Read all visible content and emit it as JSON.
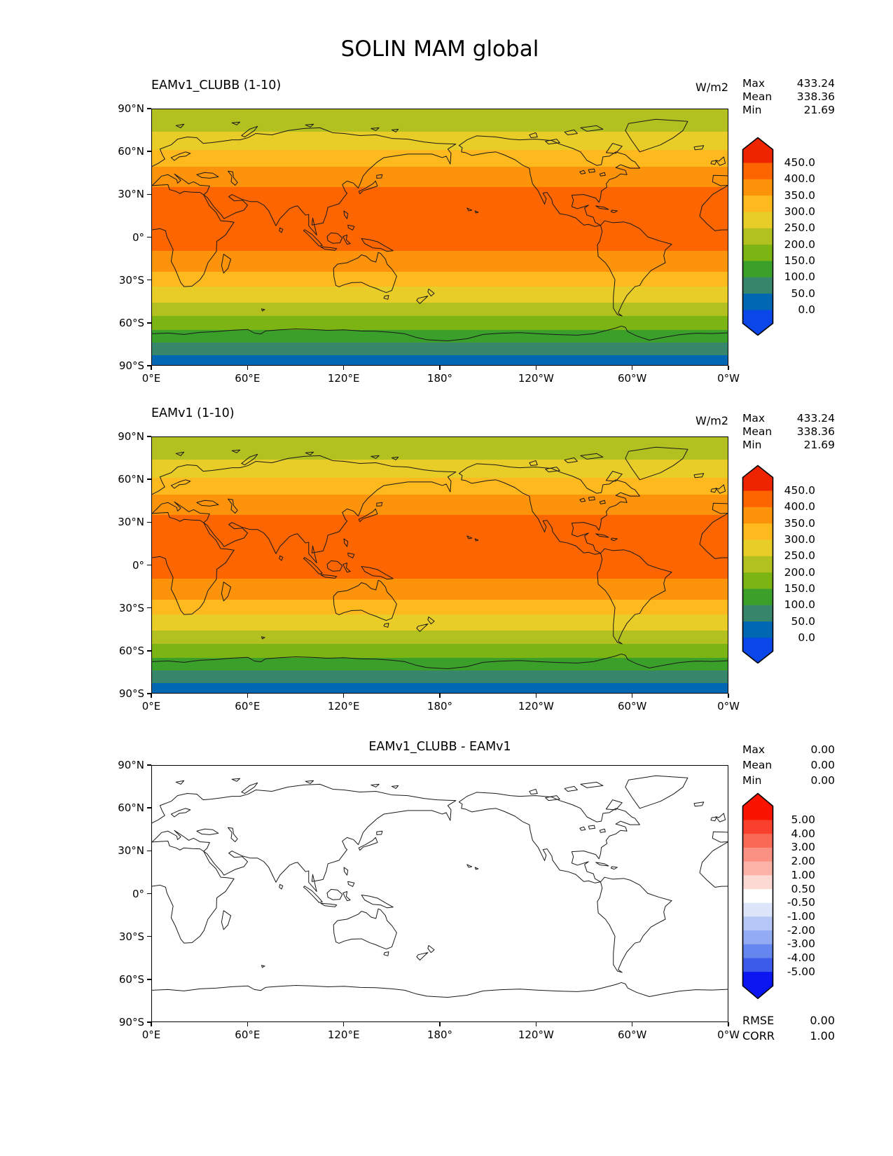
{
  "title": "SOLIN MAM global",
  "axes": {
    "x_ticks": [
      "0°E",
      "60°E",
      "120°E",
      "180°",
      "120°W",
      "60°W",
      "0°W"
    ],
    "y_ticks": [
      "90°N",
      "60°N",
      "30°N",
      "0°",
      "30°S",
      "60°S",
      "90°S"
    ]
  },
  "panels": [
    {
      "title": "EAMv1_CLUBB (1-10)",
      "units": "W/m2",
      "stats": [
        {
          "label": "Max",
          "value": "433.24"
        },
        {
          "label": "Mean",
          "value": "338.36"
        },
        {
          "label": "Min",
          "value": "21.69"
        }
      ],
      "map_bands": [
        {
          "color": "#b2c120",
          "height": 8.7
        },
        {
          "color": "#e8cc28",
          "height": 7.1
        },
        {
          "color": "#fdb91e",
          "height": 6.8
        },
        {
          "color": "#fc930a",
          "height": 7.9
        },
        {
          "color": "#fd6500",
          "height": 24.8
        },
        {
          "color": "#fc930a",
          "height": 8.3
        },
        {
          "color": "#fdb91e",
          "height": 5.7
        },
        {
          "color": "#e8cc28",
          "height": 6.2
        },
        {
          "color": "#b2c120",
          "height": 5.4
        },
        {
          "color": "#7cb414",
          "height": 5.4
        },
        {
          "color": "#3ba02a",
          "height": 5.0
        },
        {
          "color": "#37856b",
          "height": 4.9
        },
        {
          "color": "#0068b2",
          "height": 3.8
        }
      ],
      "colorbar": {
        "extend_top": "#ee2400",
        "extend_bottom": "#0a46e8",
        "segments": [
          "#fd6500",
          "#fc930a",
          "#fdb91e",
          "#e8cc28",
          "#b2c120",
          "#7cb414",
          "#3ba02a",
          "#37856b",
          "#0068b2"
        ],
        "labels": [
          "450.0",
          "400.0",
          "350.0",
          "300.0",
          "250.0",
          "200.0",
          "150.0",
          "100.0",
          "50.0",
          "0.0"
        ]
      }
    },
    {
      "title": "EAMv1 (1-10)",
      "units": "W/m2",
      "stats": [
        {
          "label": "Max",
          "value": "433.24"
        },
        {
          "label": "Mean",
          "value": "338.36"
        },
        {
          "label": "Min",
          "value": "21.69"
        }
      ],
      "map_bands": [
        {
          "color": "#b2c120",
          "height": 8.7
        },
        {
          "color": "#e8cc28",
          "height": 7.1
        },
        {
          "color": "#fdb91e",
          "height": 6.8
        },
        {
          "color": "#fc930a",
          "height": 7.9
        },
        {
          "color": "#fd6500",
          "height": 24.8
        },
        {
          "color": "#fc930a",
          "height": 8.3
        },
        {
          "color": "#fdb91e",
          "height": 5.7
        },
        {
          "color": "#e8cc28",
          "height": 6.2
        },
        {
          "color": "#b2c120",
          "height": 5.4
        },
        {
          "color": "#7cb414",
          "height": 5.4
        },
        {
          "color": "#3ba02a",
          "height": 5.0
        },
        {
          "color": "#37856b",
          "height": 4.9
        },
        {
          "color": "#0068b2",
          "height": 3.8
        }
      ],
      "colorbar": {
        "extend_top": "#ee2400",
        "extend_bottom": "#0a46e8",
        "segments": [
          "#fd6500",
          "#fc930a",
          "#fdb91e",
          "#e8cc28",
          "#b2c120",
          "#7cb414",
          "#3ba02a",
          "#37856b",
          "#0068b2"
        ],
        "labels": [
          "450.0",
          "400.0",
          "350.0",
          "300.0",
          "250.0",
          "200.0",
          "150.0",
          "100.0",
          "50.0",
          "0.0"
        ]
      }
    },
    {
      "title": "EAMv1_CLUBB - EAMv1",
      "units": "",
      "stats": [
        {
          "label": "Max",
          "value": "0.00"
        },
        {
          "label": "Mean",
          "value": "0.00"
        },
        {
          "label": "Min",
          "value": "0.00"
        }
      ],
      "map_bands": [],
      "colorbar": {
        "extend_top": "#fa1400",
        "extend_bottom": "#0b16f0",
        "segments": [
          "#f9402c",
          "#f96a56",
          "#fb9183",
          "#fcb2a6",
          "#fdd9d3",
          "#ffffff",
          "#dde5fa",
          "#b6c6f6",
          "#93abf3",
          "#6585ef",
          "#3d5beb"
        ],
        "labels": [
          "5.00",
          "4.00",
          "3.00",
          "2.00",
          "1.00",
          "0.50",
          "-0.50",
          "-1.00",
          "-2.00",
          "-3.00",
          "-4.00",
          "-5.00"
        ]
      }
    }
  ],
  "footer_stats": [
    {
      "label": "RMSE",
      "value": "0.00"
    },
    {
      "label": "CORR",
      "value": "1.00"
    }
  ],
  "chart_data": {
    "type": "heatmap",
    "title": "SOLIN MAM global",
    "variable": "SOLIN",
    "season": "MAM",
    "region": "global",
    "units": "W/m2",
    "projection": "equirectangular, longitudes 0°E to 0°W (centered on 180°)",
    "x_tick_labels": [
      "0°E",
      "60°E",
      "120°E",
      "180°",
      "120°W",
      "60°W",
      "0°W"
    ],
    "y_tick_labels": [
      "90°N",
      "60°N",
      "30°N",
      "0°",
      "30°S",
      "60°S",
      "90°S"
    ],
    "panels": [
      {
        "title": "EAMv1_CLUBB (1-10)",
        "stats": {
          "max": 433.24,
          "mean": 338.36,
          "min": 21.69
        },
        "colorbar_levels": [
          0,
          50,
          100,
          150,
          200,
          250,
          300,
          350,
          400,
          450
        ],
        "colorbar_extend": "both",
        "zonal_bands_W_per_m2": [
          {
            "lat_from": 90,
            "lat_to": 74.3,
            "value_range": "200-250"
          },
          {
            "lat_from": 74.3,
            "lat_to": 61.6,
            "value_range": "250-300"
          },
          {
            "lat_from": 61.6,
            "lat_to": 49.3,
            "value_range": "300-350"
          },
          {
            "lat_from": 49.3,
            "lat_to": 35.1,
            "value_range": "350-400"
          },
          {
            "lat_from": 35.1,
            "lat_to": -9.5,
            "value_range": "400-450"
          },
          {
            "lat_from": -9.5,
            "lat_to": -24.5,
            "value_range": "350-400"
          },
          {
            "lat_from": -24.5,
            "lat_to": -34.7,
            "value_range": "300-350"
          },
          {
            "lat_from": -34.7,
            "lat_to": -45.9,
            "value_range": "250-300"
          },
          {
            "lat_from": -45.9,
            "lat_to": -55.6,
            "value_range": "200-250"
          },
          {
            "lat_from": -55.6,
            "lat_to": -65.3,
            "value_range": "150-200"
          },
          {
            "lat_from": -65.3,
            "lat_to": -74.3,
            "value_range": "100-150"
          },
          {
            "lat_from": -74.3,
            "lat_to": -83.2,
            "value_range": "50-100"
          },
          {
            "lat_from": -83.2,
            "lat_to": -90,
            "value_range": "0-50"
          }
        ]
      },
      {
        "title": "EAMv1 (1-10)",
        "stats": {
          "max": 433.24,
          "mean": 338.36,
          "min": 21.69
        },
        "colorbar_levels": [
          0,
          50,
          100,
          150,
          200,
          250,
          300,
          350,
          400,
          450
        ],
        "colorbar_extend": "both",
        "zonal_bands_W_per_m2": "identical to panel 1"
      },
      {
        "title": "EAMv1_CLUBB - EAMv1",
        "stats": {
          "max": 0.0,
          "mean": 0.0,
          "min": 0.0
        },
        "colorbar_levels": [
          -5,
          -4,
          -3,
          -2,
          -1,
          -0.5,
          0.5,
          1,
          2,
          3,
          4,
          5
        ],
        "colorbar_extend": "both",
        "field": "uniformly 0.00 (all white)",
        "rmse": 0.0,
        "corr": 1.0
      }
    ]
  }
}
